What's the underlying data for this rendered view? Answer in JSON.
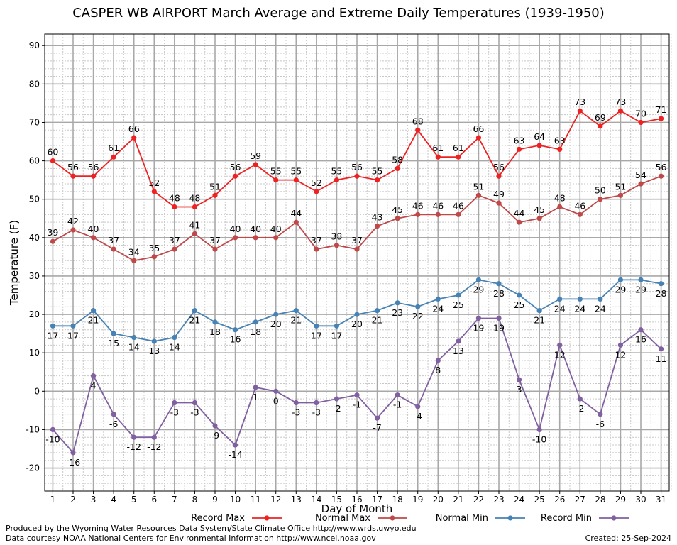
{
  "chart_data": {
    "type": "line",
    "title": "CASPER WB AIRPORT March Average and Extreme Daily Temperatures (1939-1950)",
    "xlabel": "Day of Month",
    "ylabel": "Temperature (F)",
    "x": [
      1,
      2,
      3,
      4,
      5,
      6,
      7,
      8,
      9,
      10,
      11,
      12,
      13,
      14,
      15,
      16,
      17,
      18,
      19,
      20,
      21,
      22,
      23,
      24,
      25,
      26,
      27,
      28,
      29,
      30,
      31
    ],
    "xlim": [
      0.6,
      31.4
    ],
    "ylim": [
      -26,
      93
    ],
    "yticks": [
      -20,
      -10,
      0,
      10,
      20,
      30,
      40,
      50,
      60,
      70,
      80,
      90
    ],
    "grid": true,
    "legend_position": "bottom",
    "series": [
      {
        "name": "Record Max",
        "color": "#ee2222",
        "label_pos": "above",
        "values": [
          60,
          56,
          56,
          61,
          66,
          52,
          48,
          48,
          51,
          56,
          59,
          55,
          55,
          52,
          55,
          56,
          55,
          58,
          68,
          61,
          61,
          66,
          56,
          63,
          64,
          63,
          73,
          69,
          73,
          70,
          71
        ]
      },
      {
        "name": "Normal Max",
        "color": "#c04848",
        "label_pos": "above",
        "values": [
          39,
          42,
          40,
          37,
          34,
          35,
          37,
          41,
          37,
          40,
          40,
          40,
          44,
          37,
          38,
          37,
          43,
          45,
          46,
          46,
          46,
          51,
          49,
          44,
          45,
          48,
          46,
          50,
          51,
          54,
          56
        ]
      },
      {
        "name": "Normal Min",
        "color": "#4682b4",
        "label_pos": "below",
        "values": [
          17,
          17,
          21,
          15,
          14,
          13,
          14,
          21,
          18,
          16,
          18,
          20,
          21,
          17,
          17,
          20,
          21,
          23,
          22,
          24,
          25,
          29,
          28,
          25,
          21,
          24,
          24,
          24,
          29,
          29,
          28
        ]
      },
      {
        "name": "Record Min",
        "color": "#8060a0",
        "label_pos": "below",
        "values": [
          -10,
          -16,
          4,
          -6,
          -12,
          -12,
          -3,
          -3,
          -9,
          -14,
          1,
          0,
          -3,
          -3,
          -2,
          -1,
          -7,
          -1,
          -4,
          8,
          13,
          19,
          19,
          3,
          -10,
          12,
          -2,
          -6,
          12,
          16,
          11
        ]
      }
    ]
  },
  "credits": {
    "line1": "Produced by the Wyoming Water Resources Data System/State Climate Office http://www.wrds.uwyo.edu",
    "line2": "Data courtesy NOAA National Centers for Environmental Information http://www.ncei.noaa.gov",
    "created": "Created: 25-Sep-2024"
  }
}
